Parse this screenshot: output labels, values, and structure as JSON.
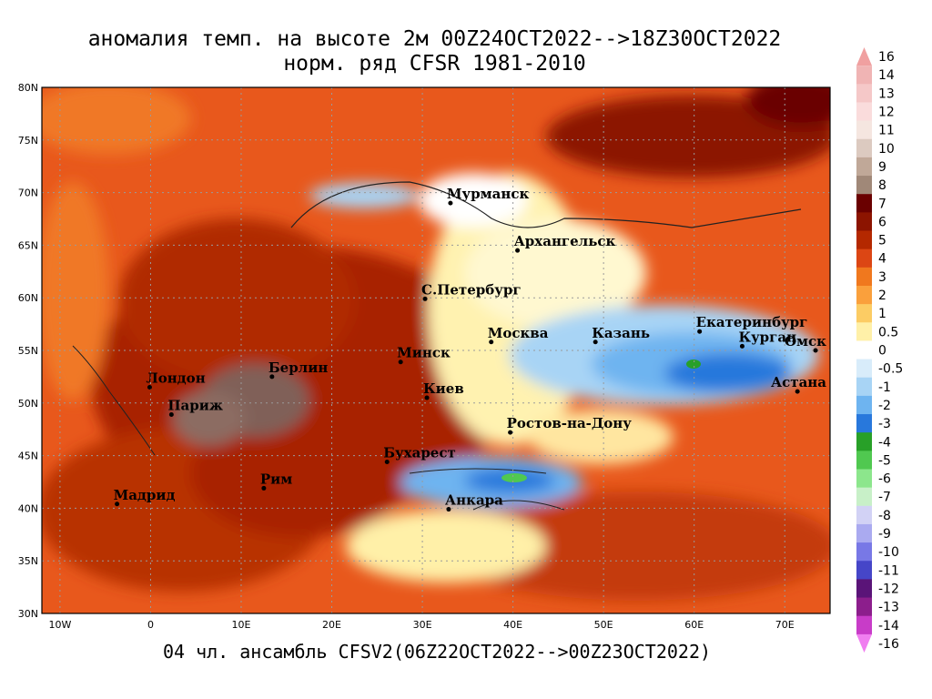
{
  "title_line1": "аномалия темп. на высоте 2м 00Z24OCT2022-->18Z30OCT2022",
  "title_line2": "норм. ряд CFSR 1981-2010",
  "footer": "04 чл. ансамбль CFSV2(06Z22OCT2022-->00Z23OCT2022)",
  "map": {
    "lon_range": [
      -12,
      75
    ],
    "lat_range": [
      30,
      80
    ],
    "lat_ticks": [
      "30N",
      "35N",
      "40N",
      "45N",
      "50N",
      "55N",
      "60N",
      "65N",
      "70N",
      "75N",
      "80N"
    ],
    "lon_ticks": [
      "10W",
      "0",
      "10E",
      "20E",
      "30E",
      "40E",
      "50E",
      "60E",
      "70E"
    ],
    "gridlines": true
  },
  "cities": [
    {
      "name": "Мурманск",
      "lon": 33.1,
      "lat": 69.0
    },
    {
      "name": "Архангельск",
      "lon": 40.5,
      "lat": 64.5
    },
    {
      "name": "С.Петербург",
      "lon": 30.3,
      "lat": 59.9
    },
    {
      "name": "Москва",
      "lon": 37.6,
      "lat": 55.8
    },
    {
      "name": "Казань",
      "lon": 49.1,
      "lat": 55.8
    },
    {
      "name": "Екатеринбург",
      "lon": 60.6,
      "lat": 56.8
    },
    {
      "name": "Курган",
      "lon": 65.3,
      "lat": 55.4
    },
    {
      "name": "Омск",
      "lon": 73.4,
      "lat": 55.0
    },
    {
      "name": "Астана",
      "lon": 71.4,
      "lat": 51.1
    },
    {
      "name": "Минск",
      "lon": 27.6,
      "lat": 53.9
    },
    {
      "name": "Берлин",
      "lon": 13.4,
      "lat": 52.5
    },
    {
      "name": "Лондон",
      "lon": -0.1,
      "lat": 51.5
    },
    {
      "name": "Париж",
      "lon": 2.3,
      "lat": 48.9
    },
    {
      "name": "Киев",
      "lon": 30.5,
      "lat": 50.5
    },
    {
      "name": "Ростов-на-Дону",
      "lon": 39.7,
      "lat": 47.2
    },
    {
      "name": "Бухарест",
      "lon": 26.1,
      "lat": 44.4
    },
    {
      "name": "Рим",
      "lon": 12.5,
      "lat": 41.9
    },
    {
      "name": "Мадрид",
      "lon": -3.7,
      "lat": 40.4
    },
    {
      "name": "Анкара",
      "lon": 32.9,
      "lat": 39.9
    }
  ],
  "colorbar": {
    "labels": [
      "16",
      "14",
      "13",
      "12",
      "11",
      "10",
      "9",
      "8",
      "7",
      "6",
      "5",
      "4",
      "3",
      "2",
      "1",
      "0.5",
      "0",
      "-0.5",
      "-1",
      "-2",
      "-3",
      "-4",
      "-5",
      "-6",
      "-7",
      "-8",
      "-9",
      "-10",
      "-11",
      "-12",
      "-13",
      "-14",
      "-16"
    ],
    "colors": [
      "#f0a0a0",
      "#f0b4b4",
      "#f5c8c8",
      "#fadcdc",
      "#f5e6e0",
      "#dccac0",
      "#c0a898",
      "#a08878",
      "#6a0000",
      "#8c1400",
      "#b42800",
      "#dc4614",
      "#f0781e",
      "#faa03c",
      "#fccc64",
      "#fff0a8",
      "#ffffff",
      "#d8ecfa",
      "#a8d4f5",
      "#6eb4f0",
      "#2878dc",
      "#28a028",
      "#50c850",
      "#8ce68c",
      "#c8f0c8",
      "#d2d2f5",
      "#aaaaf0",
      "#7878e6",
      "#4646c8",
      "#5a1478",
      "#8c1e8c",
      "#c83cc8",
      "#f07ef0"
    ]
  }
}
